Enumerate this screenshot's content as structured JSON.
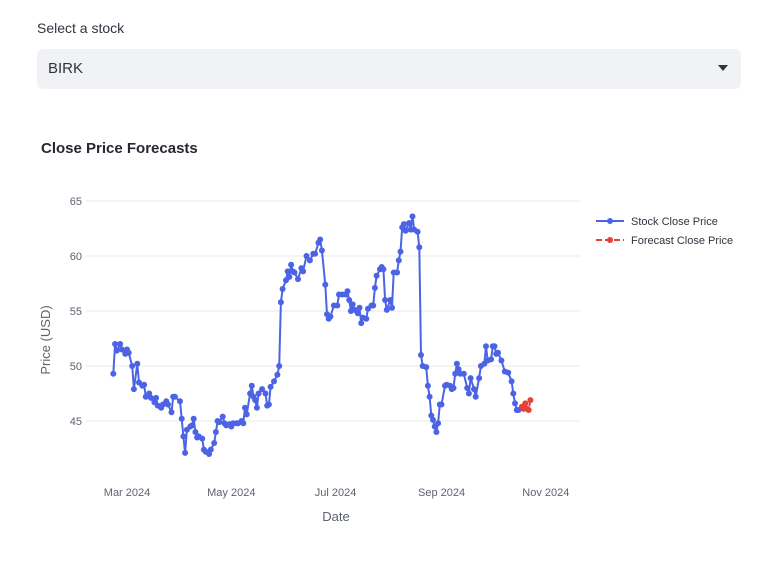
{
  "select": {
    "label": "Select a stock",
    "value": "BIRK"
  },
  "chart_data": {
    "type": "line",
    "title": "Close Price Forecasts",
    "xlabel": "Date",
    "ylabel": "Price (USD)",
    "y_ticks": [
      45,
      50,
      55,
      60,
      65
    ],
    "x_ticks": [
      {
        "label": "Mar 2024",
        "date": "2024-03-01"
      },
      {
        "label": "May 2024",
        "date": "2024-05-01"
      },
      {
        "label": "Jul 2024",
        "date": "2024-07-01"
      },
      {
        "label": "Sep 2024",
        "date": "2024-09-01"
      },
      {
        "label": "Nov 2024",
        "date": "2024-11-01"
      }
    ],
    "xlim": [
      "2024-02-06",
      "2024-11-21"
    ],
    "ylim": [
      41,
      66
    ],
    "grid": true,
    "legend_position": "top-right",
    "series": [
      {
        "name": "Stock Close Price",
        "color": "#4c63e6",
        "dash": "solid",
        "points": [
          [
            "2024-02-22",
            49.3
          ],
          [
            "2024-02-23",
            52.0
          ],
          [
            "2024-02-24",
            51.4
          ],
          [
            "2024-02-26",
            52.0
          ],
          [
            "2024-02-27",
            51.5
          ],
          [
            "2024-02-29",
            51.1
          ],
          [
            "2024-03-01",
            51.5
          ],
          [
            "2024-03-02",
            51.2
          ],
          [
            "2024-03-04",
            50.0
          ],
          [
            "2024-03-05",
            47.9
          ],
          [
            "2024-03-07",
            50.2
          ],
          [
            "2024-03-08",
            48.5
          ],
          [
            "2024-03-10",
            48.2
          ],
          [
            "2024-03-11",
            48.3
          ],
          [
            "2024-03-12",
            47.2
          ],
          [
            "2024-03-14",
            47.5
          ],
          [
            "2024-03-15",
            47.1
          ],
          [
            "2024-03-17",
            46.7
          ],
          [
            "2024-03-18",
            47.1
          ],
          [
            "2024-03-19",
            46.4
          ],
          [
            "2024-03-21",
            46.2
          ],
          [
            "2024-03-22",
            46.5
          ],
          [
            "2024-03-24",
            46.8
          ],
          [
            "2024-03-25",
            46.5
          ],
          [
            "2024-03-27",
            45.8
          ],
          [
            "2024-03-28",
            47.2
          ],
          [
            "2024-03-29",
            47.2
          ],
          [
            "2024-04-01",
            46.8
          ],
          [
            "2024-04-02",
            45.2
          ],
          [
            "2024-04-03",
            43.6
          ],
          [
            "2024-04-04",
            42.1
          ],
          [
            "2024-04-05",
            44.2
          ],
          [
            "2024-04-07",
            44.5
          ],
          [
            "2024-04-08",
            44.6
          ],
          [
            "2024-04-09",
            45.2
          ],
          [
            "2024-04-10",
            44.0
          ],
          [
            "2024-04-11",
            43.5
          ],
          [
            "2024-04-12",
            43.6
          ],
          [
            "2024-04-14",
            43.4
          ],
          [
            "2024-04-15",
            42.4
          ],
          [
            "2024-04-16",
            42.2
          ],
          [
            "2024-04-18",
            42.0
          ],
          [
            "2024-04-19",
            42.4
          ],
          [
            "2024-04-21",
            43.0
          ],
          [
            "2024-04-22",
            44.0
          ],
          [
            "2024-04-23",
            45.0
          ],
          [
            "2024-04-24",
            44.9
          ],
          [
            "2024-04-26",
            45.4
          ],
          [
            "2024-04-27",
            44.8
          ],
          [
            "2024-04-28",
            44.6
          ],
          [
            "2024-04-30",
            44.7
          ],
          [
            "2024-05-01",
            44.5
          ],
          [
            "2024-05-02",
            44.8
          ],
          [
            "2024-05-04",
            44.8
          ],
          [
            "2024-05-05",
            44.8
          ],
          [
            "2024-05-07",
            45.0
          ],
          [
            "2024-05-08",
            44.8
          ],
          [
            "2024-05-09",
            46.2
          ],
          [
            "2024-05-10",
            45.6
          ],
          [
            "2024-05-12",
            47.5
          ],
          [
            "2024-05-13",
            48.2
          ],
          [
            "2024-05-14",
            47.2
          ],
          [
            "2024-05-15",
            46.9
          ],
          [
            "2024-05-16",
            46.2
          ],
          [
            "2024-05-17",
            47.5
          ],
          [
            "2024-05-19",
            47.9
          ],
          [
            "2024-05-21",
            47.5
          ],
          [
            "2024-05-22",
            46.4
          ],
          [
            "2024-05-23",
            46.5
          ],
          [
            "2024-05-24",
            48.1
          ],
          [
            "2024-05-26",
            48.6
          ],
          [
            "2024-05-28",
            49.2
          ],
          [
            "2024-05-29",
            50.0
          ],
          [
            "2024-05-30",
            55.8
          ],
          [
            "2024-05-31",
            57.0
          ],
          [
            "2024-06-02",
            57.8
          ],
          [
            "2024-06-03",
            58.6
          ],
          [
            "2024-06-04",
            58.1
          ],
          [
            "2024-06-05",
            59.2
          ],
          [
            "2024-06-06",
            58.6
          ],
          [
            "2024-06-07",
            58.5
          ],
          [
            "2024-06-09",
            57.9
          ],
          [
            "2024-06-11",
            58.9
          ],
          [
            "2024-06-12",
            58.6
          ],
          [
            "2024-06-14",
            60.0
          ],
          [
            "2024-06-16",
            59.6
          ],
          [
            "2024-06-18",
            60.2
          ],
          [
            "2024-06-19",
            60.2
          ],
          [
            "2024-06-21",
            61.2
          ],
          [
            "2024-06-22",
            61.5
          ],
          [
            "2024-06-23",
            60.5
          ],
          [
            "2024-06-25",
            57.4
          ],
          [
            "2024-06-26",
            54.7
          ],
          [
            "2024-06-27",
            54.3
          ],
          [
            "2024-06-28",
            54.5
          ],
          [
            "2024-06-30",
            55.5
          ],
          [
            "2024-07-02",
            55.5
          ],
          [
            "2024-07-03",
            56.5
          ],
          [
            "2024-07-05",
            56.5
          ],
          [
            "2024-07-07",
            56.5
          ],
          [
            "2024-07-08",
            56.8
          ],
          [
            "2024-07-09",
            56.0
          ],
          [
            "2024-07-10",
            55.0
          ],
          [
            "2024-07-11",
            55.6
          ],
          [
            "2024-07-12",
            55.1
          ],
          [
            "2024-07-14",
            54.8
          ],
          [
            "2024-07-15",
            55.3
          ],
          [
            "2024-07-16",
            53.9
          ],
          [
            "2024-07-17",
            54.4
          ],
          [
            "2024-07-19",
            54.3
          ],
          [
            "2024-07-20",
            55.2
          ],
          [
            "2024-07-22",
            55.5
          ],
          [
            "2024-07-23",
            55.5
          ],
          [
            "2024-07-24",
            57.1
          ],
          [
            "2024-07-25",
            58.2
          ],
          [
            "2024-07-27",
            58.8
          ],
          [
            "2024-07-28",
            59.0
          ],
          [
            "2024-07-29",
            58.8
          ],
          [
            "2024-07-30",
            56.0
          ],
          [
            "2024-07-31",
            55.1
          ],
          [
            "2024-08-02",
            56.0
          ],
          [
            "2024-08-03",
            55.3
          ],
          [
            "2024-08-04",
            58.5
          ],
          [
            "2024-08-06",
            58.5
          ],
          [
            "2024-08-07",
            59.6
          ],
          [
            "2024-08-08",
            60.4
          ],
          [
            "2024-08-09",
            62.6
          ],
          [
            "2024-08-10",
            62.9
          ],
          [
            "2024-08-11",
            62.3
          ],
          [
            "2024-08-13",
            63.0
          ],
          [
            "2024-08-14",
            62.4
          ],
          [
            "2024-08-15",
            63.6
          ],
          [
            "2024-08-16",
            62.4
          ],
          [
            "2024-08-18",
            62.2
          ],
          [
            "2024-08-19",
            60.8
          ],
          [
            "2024-08-20",
            51.0
          ],
          [
            "2024-08-21",
            50.0
          ],
          [
            "2024-08-23",
            49.9
          ],
          [
            "2024-08-24",
            48.2
          ],
          [
            "2024-08-25",
            47.2
          ],
          [
            "2024-08-26",
            45.5
          ],
          [
            "2024-08-27",
            45.1
          ],
          [
            "2024-08-28",
            44.5
          ],
          [
            "2024-08-29",
            44.0
          ],
          [
            "2024-08-30",
            44.8
          ],
          [
            "2024-08-31",
            46.5
          ],
          [
            "2024-09-01",
            46.5
          ],
          [
            "2024-09-03",
            48.2
          ],
          [
            "2024-09-04",
            48.3
          ],
          [
            "2024-09-06",
            48.2
          ],
          [
            "2024-09-07",
            47.9
          ],
          [
            "2024-09-08",
            48.0
          ],
          [
            "2024-09-09",
            49.3
          ],
          [
            "2024-09-10",
            50.2
          ],
          [
            "2024-09-11",
            49.7
          ],
          [
            "2024-09-12",
            49.3
          ],
          [
            "2024-09-14",
            49.3
          ],
          [
            "2024-09-16",
            48.0
          ],
          [
            "2024-09-17",
            47.5
          ],
          [
            "2024-09-18",
            48.9
          ],
          [
            "2024-09-20",
            47.9
          ],
          [
            "2024-09-21",
            47.2
          ],
          [
            "2024-09-23",
            48.9
          ],
          [
            "2024-09-24",
            50.0
          ],
          [
            "2024-09-26",
            50.2
          ],
          [
            "2024-09-27",
            51.8
          ],
          [
            "2024-09-28",
            50.5
          ],
          [
            "2024-09-30",
            50.6
          ],
          [
            "2024-10-01",
            51.8
          ],
          [
            "2024-10-02",
            51.8
          ],
          [
            "2024-10-03",
            51.1
          ],
          [
            "2024-10-04",
            51.2
          ],
          [
            "2024-10-06",
            50.5
          ],
          [
            "2024-10-08",
            49.5
          ],
          [
            "2024-10-10",
            49.4
          ],
          [
            "2024-10-12",
            48.6
          ],
          [
            "2024-10-13",
            47.5
          ],
          [
            "2024-10-14",
            46.6
          ],
          [
            "2024-10-15",
            46.0
          ],
          [
            "2024-10-16",
            46.0
          ]
        ]
      },
      {
        "name": "Forecast Close Price",
        "color": "#e8413a",
        "dash": "dash",
        "points": [
          [
            "2024-10-18",
            46.3
          ],
          [
            "2024-10-19",
            46.1
          ],
          [
            "2024-10-20",
            46.6
          ],
          [
            "2024-10-21",
            46.1
          ],
          [
            "2024-10-22",
            46.0
          ],
          [
            "2024-10-23",
            46.9
          ]
        ]
      }
    ]
  }
}
